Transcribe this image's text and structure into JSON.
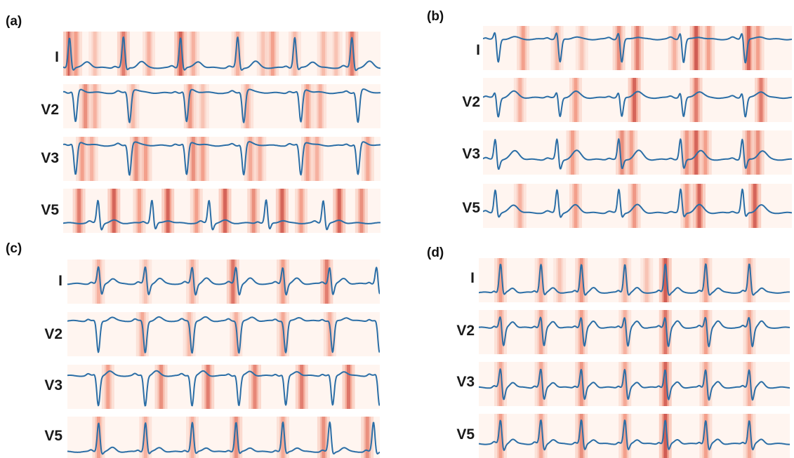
{
  "figure": {
    "colors": {
      "heat_low": "#fff5f0",
      "heat_high": "#a50f15",
      "trace": "#2b6ea6"
    },
    "panels": [
      {
        "label": "(a)",
        "leads": [
          {
            "name": "I",
            "morph": "I_a",
            "beats": [
              0.02,
              0.19,
              0.37,
              0.55,
              0.73,
              0.91
            ],
            "bands": [
              [
                0.02,
                0.9
              ],
              [
                0.04,
                0.5
              ],
              [
                0.1,
                0.3
              ],
              [
                0.19,
                0.7
              ],
              [
                0.27,
                0.4
              ],
              [
                0.37,
                0.85
              ],
              [
                0.41,
                0.4
              ],
              [
                0.55,
                0.4
              ],
              [
                0.63,
                0.3
              ],
              [
                0.66,
                0.5
              ],
              [
                0.73,
                0.35
              ],
              [
                0.82,
                0.35
              ],
              [
                0.86,
                0.3
              ],
              [
                0.91,
                0.7
              ]
            ]
          },
          {
            "name": "V2",
            "morph": "V2_a",
            "beats": [
              0.03,
              0.2,
              0.38,
              0.56,
              0.74,
              0.92
            ],
            "bands": [
              [
                0.07,
                0.6
              ],
              [
                0.1,
                0.4
              ],
              [
                0.22,
                0.35
              ],
              [
                0.4,
                0.55
              ],
              [
                0.44,
                0.3
              ],
              [
                0.58,
                0.4
              ],
              [
                0.77,
                0.5
              ],
              [
                0.81,
                0.4
              ]
            ]
          },
          {
            "name": "V3",
            "morph": "V2_a",
            "beats": [
              0.03,
              0.2,
              0.38,
              0.56,
              0.74,
              0.92
            ],
            "bands": [
              [
                0.06,
                0.5
              ],
              [
                0.09,
                0.4
              ],
              [
                0.23,
                0.6
              ],
              [
                0.26,
                0.5
              ],
              [
                0.41,
                0.6
              ],
              [
                0.44,
                0.5
              ],
              [
                0.59,
                0.45
              ],
              [
                0.62,
                0.4
              ],
              [
                0.77,
                0.5
              ],
              [
                0.8,
                0.4
              ],
              [
                0.96,
                0.45
              ]
            ]
          },
          {
            "name": "V5",
            "morph": "V5_a",
            "beats": [
              0.11,
              0.28,
              0.46,
              0.64,
              0.82
            ],
            "bands": [
              [
                0.05,
                0.7
              ],
              [
                0.16,
                0.85
              ],
              [
                0.24,
                0.5
              ],
              [
                0.33,
                0.85
              ],
              [
                0.42,
                0.5
              ],
              [
                0.51,
                0.85
              ],
              [
                0.6,
                0.6
              ],
              [
                0.69,
                0.85
              ],
              [
                0.75,
                0.5
              ],
              [
                0.87,
                0.85
              ],
              [
                0.94,
                0.6
              ]
            ]
          }
        ]
      },
      {
        "label": "(b)",
        "leads": [
          {
            "name": "I",
            "morph": "I_b",
            "beats": [
              0.04,
              0.24,
              0.44,
              0.64,
              0.84
            ],
            "bands": [
              [
                0.13,
                0.5
              ],
              [
                0.24,
                0.35
              ],
              [
                0.32,
                0.3
              ],
              [
                0.44,
                0.6
              ],
              [
                0.5,
                0.7
              ],
              [
                0.62,
                0.4
              ],
              [
                0.69,
                0.9
              ],
              [
                0.73,
                0.5
              ],
              [
                0.86,
                0.85
              ],
              [
                0.89,
                0.5
              ]
            ]
          },
          {
            "name": "V2",
            "morph": "V2_b",
            "beats": [
              0.04,
              0.24,
              0.44,
              0.64,
              0.84
            ],
            "bands": [
              [
                0.12,
                0.4
              ],
              [
                0.3,
                0.5
              ],
              [
                0.49,
                0.85
              ],
              [
                0.69,
                0.7
              ],
              [
                0.9,
                0.7
              ]
            ]
          },
          {
            "name": "V3",
            "morph": "V3_b",
            "beats": [
              0.04,
              0.24,
              0.44,
              0.64,
              0.84
            ],
            "bands": [
              [
                0.29,
                0.5
              ],
              [
                0.45,
                0.6
              ],
              [
                0.48,
                0.5
              ],
              [
                0.66,
                0.55
              ],
              [
                0.69,
                0.85
              ],
              [
                0.72,
                0.5
              ],
              [
                0.86,
                0.6
              ],
              [
                0.89,
                0.6
              ]
            ]
          },
          {
            "name": "V5",
            "morph": "V5_b",
            "beats": [
              0.04,
              0.24,
              0.44,
              0.64,
              0.84
            ],
            "bands": [
              [
                0.12,
                0.4
              ],
              [
                0.3,
                0.5
              ],
              [
                0.49,
                0.55
              ],
              [
                0.66,
                0.5
              ],
              [
                0.7,
                0.85
              ],
              [
                0.88,
                0.85
              ]
            ]
          }
        ]
      },
      {
        "label": "(c)",
        "leads": [
          {
            "name": "I",
            "morph": "I_c",
            "beats": [
              0.1,
              0.25,
              0.4,
              0.54,
              0.69,
              0.84,
              0.99
            ],
            "bands": [
              [
                0.1,
                0.4
              ],
              [
                0.25,
                0.3
              ],
              [
                0.4,
                0.4
              ],
              [
                0.53,
                0.75
              ],
              [
                0.69,
                0.5
              ],
              [
                0.83,
                0.7
              ]
            ]
          },
          {
            "name": "V2",
            "morph": "V2_c",
            "beats": [
              0.09,
              0.24,
              0.39,
              0.54,
              0.69,
              0.84,
              0.99
            ],
            "bands": [
              [
                0.24,
                0.45
              ],
              [
                0.39,
                0.35
              ],
              [
                0.54,
                0.4
              ],
              [
                0.69,
                0.45
              ],
              [
                0.84,
                0.4
              ]
            ]
          },
          {
            "name": "V3",
            "morph": "V3_c",
            "beats": [
              0.09,
              0.24,
              0.39,
              0.54,
              0.69,
              0.84,
              0.99
            ],
            "bands": [
              [
                0.13,
                0.5
              ],
              [
                0.3,
                0.6
              ],
              [
                0.45,
                0.7
              ],
              [
                0.6,
                0.65
              ],
              [
                0.75,
                0.7
              ],
              [
                0.9,
                0.75
              ]
            ]
          },
          {
            "name": "V5",
            "morph": "V5_c",
            "beats": [
              0.1,
              0.25,
              0.4,
              0.54,
              0.69,
              0.84,
              0.98
            ],
            "bands": [
              [
                0.1,
                0.5
              ],
              [
                0.25,
                0.4
              ],
              [
                0.4,
                0.4
              ],
              [
                0.54,
                0.6
              ],
              [
                0.69,
                0.45
              ],
              [
                0.82,
                0.6
              ],
              [
                0.96,
                0.6
              ]
            ]
          }
        ]
      },
      {
        "label": "(d)",
        "leads": [
          {
            "name": "I",
            "morph": "I_d",
            "beats": [
              0.07,
              0.2,
              0.33,
              0.47,
              0.6,
              0.73,
              0.87
            ],
            "bands": [
              [
                0.07,
                0.5
              ],
              [
                0.2,
                0.4
              ],
              [
                0.26,
                0.3
              ],
              [
                0.33,
                0.55
              ],
              [
                0.47,
                0.35
              ],
              [
                0.54,
                0.3
              ],
              [
                0.6,
                0.9
              ],
              [
                0.73,
                0.45
              ],
              [
                0.87,
                0.4
              ]
            ]
          },
          {
            "name": "V2",
            "morph": "V2_d",
            "beats": [
              0.07,
              0.2,
              0.33,
              0.47,
              0.6,
              0.73,
              0.87
            ],
            "bands": [
              [
                0.07,
                0.45
              ],
              [
                0.2,
                0.45
              ],
              [
                0.33,
                0.5
              ],
              [
                0.47,
                0.4
              ],
              [
                0.6,
                0.75
              ],
              [
                0.73,
                0.5
              ],
              [
                0.87,
                0.45
              ]
            ]
          },
          {
            "name": "V3",
            "morph": "V3_d",
            "beats": [
              0.07,
              0.2,
              0.33,
              0.47,
              0.6,
              0.73,
              0.87
            ],
            "bands": [
              [
                0.07,
                0.45
              ],
              [
                0.2,
                0.45
              ],
              [
                0.33,
                0.55
              ],
              [
                0.47,
                0.45
              ],
              [
                0.6,
                0.85
              ],
              [
                0.73,
                0.45
              ],
              [
                0.87,
                0.4
              ]
            ]
          },
          {
            "name": "V5",
            "morph": "V5_d",
            "beats": [
              0.07,
              0.2,
              0.33,
              0.47,
              0.6,
              0.73,
              0.87
            ],
            "bands": [
              [
                0.07,
                0.5
              ],
              [
                0.2,
                0.45
              ],
              [
                0.33,
                0.6
              ],
              [
                0.47,
                0.5
              ],
              [
                0.6,
                0.9
              ],
              [
                0.73,
                0.5
              ],
              [
                0.87,
                0.45
              ]
            ]
          }
        ]
      }
    ]
  }
}
